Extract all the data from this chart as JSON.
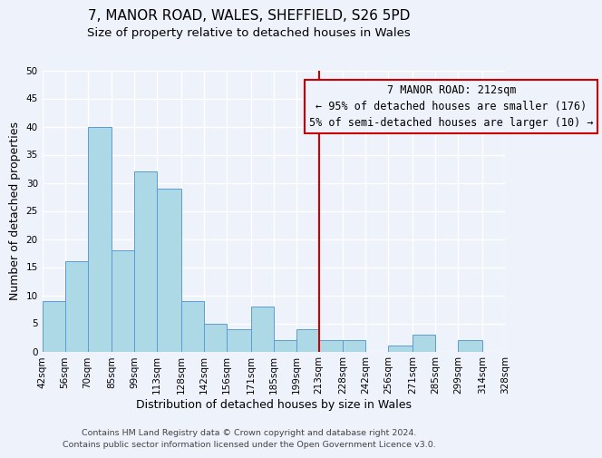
{
  "title": "7, MANOR ROAD, WALES, SHEFFIELD, S26 5PD",
  "subtitle": "Size of property relative to detached houses in Wales",
  "xlabel": "Distribution of detached houses by size in Wales",
  "ylabel": "Number of detached properties",
  "footer_line1": "Contains HM Land Registry data © Crown copyright and database right 2024.",
  "footer_line2": "Contains public sector information licensed under the Open Government Licence v3.0.",
  "bar_left_edges": [
    42,
    56,
    70,
    85,
    99,
    113,
    128,
    142,
    156,
    171,
    185,
    199,
    213,
    228,
    242,
    256,
    271,
    285,
    299,
    314
  ],
  "bar_heights": [
    9,
    16,
    40,
    18,
    32,
    29,
    9,
    5,
    4,
    8,
    2,
    4,
    2,
    2,
    0,
    1,
    3,
    0,
    2,
    0
  ],
  "bar_widths": [
    14,
    14,
    15,
    14,
    14,
    15,
    14,
    14,
    15,
    14,
    14,
    14,
    15,
    14,
    14,
    15,
    14,
    14,
    15,
    14
  ],
  "bar_color": "#add8e6",
  "bar_edgecolor": "#5b9bd5",
  "vline_x": 213,
  "vline_color": "#cc0000",
  "annotation_line1": "7 MANOR ROAD: 212sqm",
  "annotation_line2": "← 95% of detached houses are smaller (176)",
  "annotation_line3": "5% of semi-detached houses are larger (10) →",
  "annotation_box_color": "#cc0000",
  "ylim": [
    0,
    50
  ],
  "yticks": [
    0,
    5,
    10,
    15,
    20,
    25,
    30,
    35,
    40,
    45,
    50
  ],
  "tick_labels": [
    "42sqm",
    "56sqm",
    "70sqm",
    "85sqm",
    "99sqm",
    "113sqm",
    "128sqm",
    "142sqm",
    "156sqm",
    "171sqm",
    "185sqm",
    "199sqm",
    "213sqm",
    "228sqm",
    "242sqm",
    "256sqm",
    "271sqm",
    "285sqm",
    "299sqm",
    "314sqm",
    "328sqm"
  ],
  "background_color": "#eef2fb",
  "grid_color": "#ffffff",
  "title_fontsize": 11,
  "subtitle_fontsize": 9.5,
  "axis_label_fontsize": 9,
  "tick_fontsize": 7.5,
  "annotation_fontsize": 8.5,
  "footer_fontsize": 6.8
}
